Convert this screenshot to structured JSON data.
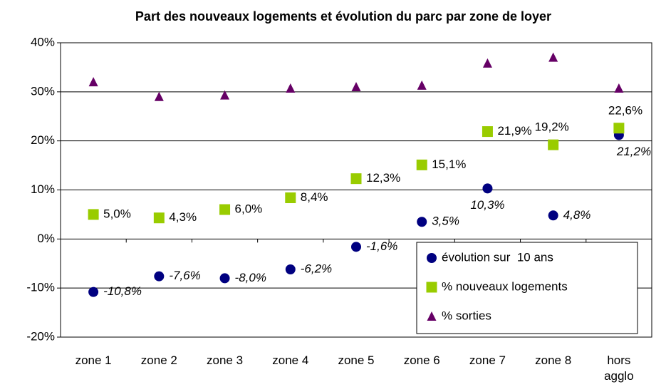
{
  "chart_data": {
    "type": "scatter",
    "title": "Part des nouveaux logements et évolution du parc par zone de loyer",
    "categories": [
      "zone 1",
      "zone 2",
      "zone 3",
      "zone 4",
      "zone 5",
      "zone 6",
      "zone 7",
      "zone 8",
      "hors agglo"
    ],
    "series": [
      {
        "name": "évolution sur  10 ans",
        "color": "#000080",
        "marker": "circle",
        "values": [
          -10.8,
          -7.6,
          -8.0,
          -6.2,
          -1.6,
          3.5,
          10.3,
          4.8,
          21.2
        ],
        "value_labels": [
          "-10,8%",
          "-7,6%",
          "-8,0%",
          "-6,2%",
          "-1,6%",
          "3,5%",
          "10,3%",
          "4,8%",
          "21,2%"
        ]
      },
      {
        "name": "% nouveaux logements",
        "color": "#99cc00",
        "marker": "square",
        "values": [
          5.0,
          4.3,
          6.0,
          8.4,
          12.3,
          15.1,
          21.9,
          19.2,
          22.6
        ],
        "value_labels": [
          "5,0%",
          "4,3%",
          "6,0%",
          "8,4%",
          "12,3%",
          "15,1%",
          "21,9%",
          "19,2%",
          "22,6%"
        ]
      },
      {
        "name": "% sorties",
        "color": "#660066",
        "marker": "triangle",
        "values": [
          32.0,
          29.0,
          29.3,
          30.7,
          31.0,
          31.3,
          35.8,
          37.0,
          30.7
        ]
      }
    ],
    "ylim": [
      -20,
      40
    ],
    "yticks": [
      {
        "value": -20,
        "label": "-20%"
      },
      {
        "value": -10,
        "label": "-10%"
      },
      {
        "value": 0,
        "label": "0%"
      },
      {
        "value": 10,
        "label": "10%"
      },
      {
        "value": 20,
        "label": "20%"
      },
      {
        "value": 30,
        "label": "30%"
      },
      {
        "value": 40,
        "label": "40%"
      }
    ],
    "grid": true
  }
}
